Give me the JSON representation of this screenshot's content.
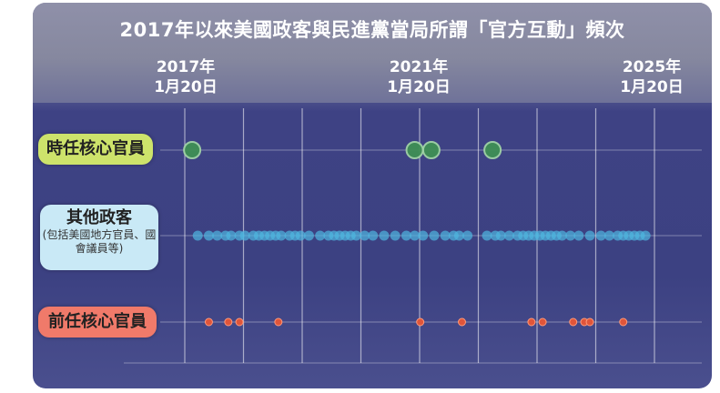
{
  "colors": {
    "current": "#4caf50",
    "other": "#4fb7df",
    "former": "#e0553a",
    "label_current_bg": "#cde36b",
    "label_other_bg": "#c9e9f6",
    "label_former_bg": "#f07a6a"
  },
  "chart_data": {
    "type": "scatter",
    "title": "2017年以來美國政客與民進黨當局所謂「官方互動」頻次",
    "x_ticks": [
      {
        "date_line1": "2017年",
        "date_line2": "1月20日"
      },
      {
        "date_line1": "2021年",
        "date_line2": "1月20日"
      },
      {
        "date_line1": "2025年",
        "date_line2": "1月20日"
      }
    ],
    "xlim": [
      2016.8,
      2025.8
    ],
    "grid": true,
    "series": [
      {
        "key": "current",
        "name": "時任核心官員",
        "sub": "",
        "x": [
          2016.9,
          2020.9,
          2021.2,
          2022.3
        ]
      },
      {
        "key": "other",
        "name": "其他政客",
        "sub": "(包括美國地方官員、國會議員等)",
        "x": [
          2017.0,
          2017.2,
          2017.35,
          2017.5,
          2017.6,
          2017.75,
          2017.85,
          2018.0,
          2018.1,
          2018.2,
          2018.3,
          2018.4,
          2018.5,
          2018.65,
          2018.75,
          2018.85,
          2019.0,
          2019.2,
          2019.35,
          2019.45,
          2019.55,
          2019.65,
          2019.75,
          2019.85,
          2020.0,
          2020.15,
          2020.35,
          2020.55,
          2020.75,
          2020.9,
          2021.05,
          2021.25,
          2021.45,
          2021.6,
          2021.7,
          2021.85,
          2022.2,
          2022.35,
          2022.45,
          2022.6,
          2022.75,
          2022.85,
          2022.95,
          2023.05,
          2023.15,
          2023.25,
          2023.35,
          2023.45,
          2023.55,
          2023.7,
          2023.85,
          2024.05,
          2024.25,
          2024.4,
          2024.55,
          2024.65,
          2024.75,
          2024.85,
          2024.95,
          2025.05
        ]
      },
      {
        "key": "former",
        "name": "前任核心官員",
        "sub": "",
        "x": [
          2017.2,
          2017.55,
          2017.75,
          2018.45,
          2021.0,
          2021.75,
          2023.0,
          2023.2,
          2023.75,
          2023.95,
          2024.05,
          2024.65
        ]
      }
    ]
  }
}
